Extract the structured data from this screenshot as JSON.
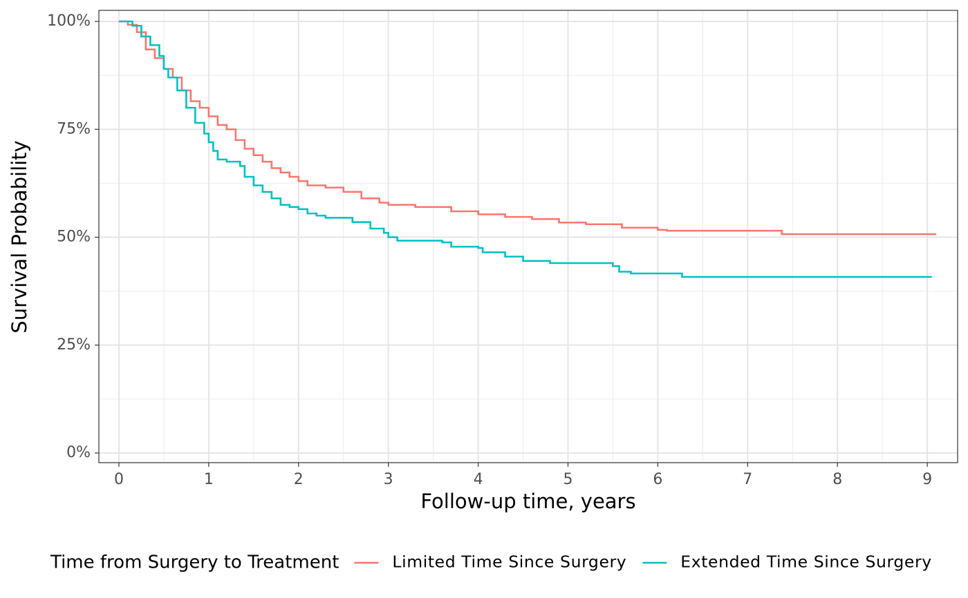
{
  "chart_data": {
    "type": "step",
    "x_label": "Follow-up time, years",
    "y_label": "Survival Probability",
    "xlim": [
      -0.223,
      9.338
    ],
    "ylim": [
      -2.24,
      102.56
    ],
    "xticks": [
      0,
      1,
      2,
      3,
      4,
      5,
      6,
      7,
      8,
      9
    ],
    "yticks": [
      {
        "value": 0,
        "label": "0%"
      },
      {
        "value": 25,
        "label": "25%"
      },
      {
        "value": 50,
        "label": "50%"
      },
      {
        "value": 75,
        "label": "75%"
      },
      {
        "value": 100,
        "label": "100%"
      }
    ],
    "grid": true,
    "legend_title": "Time from Surgery to Treatment",
    "legend_position": "bottom",
    "series": [
      {
        "name": "Limited Time Since Surgery",
        "color": "#f8766d",
        "x": [
          0,
          0.1,
          0.2,
          0.3,
          0.4,
          0.5,
          0.6,
          0.7,
          0.8,
          0.9,
          1.0,
          1.1,
          1.2,
          1.3,
          1.4,
          1.5,
          1.6,
          1.7,
          1.8,
          1.9,
          2.0,
          2.1,
          2.3,
          2.5,
          2.7,
          2.9,
          3.0,
          3.3,
          3.7,
          4.0,
          4.3,
          4.6,
          4.9,
          5.2,
          5.6,
          6.0,
          6.1,
          7.38,
          9.1
        ],
        "values": [
          100,
          99.2,
          97.5,
          93.5,
          91.5,
          89,
          87,
          84,
          81.5,
          80,
          78,
          76,
          75,
          72.5,
          70.5,
          69,
          67.5,
          66,
          65,
          64,
          63,
          62,
          61.5,
          60.5,
          59,
          58,
          57.5,
          57,
          56,
          55.3,
          54.7,
          54.2,
          53.4,
          53,
          52.2,
          51.7,
          51.5,
          50.7,
          50.7
        ]
      },
      {
        "name": "Extended Time Since Surgery",
        "color": "#00bfc4",
        "x": [
          0,
          0.15,
          0.25,
          0.35,
          0.45,
          0.5,
          0.55,
          0.65,
          0.75,
          0.85,
          0.95,
          1.0,
          1.05,
          1.1,
          1.2,
          1.35,
          1.4,
          1.5,
          1.6,
          1.7,
          1.8,
          1.9,
          2.0,
          2.1,
          2.2,
          2.3,
          2.6,
          2.8,
          2.95,
          3.0,
          3.1,
          3.6,
          3.7,
          4.0,
          4.05,
          4.3,
          4.5,
          4.8,
          5.5,
          5.57,
          5.7,
          6.27,
          9.05
        ],
        "values": [
          100,
          99,
          96.5,
          94.5,
          92,
          89,
          87,
          84,
          80,
          76.5,
          74,
          72,
          70,
          68,
          67.5,
          66.5,
          64,
          62,
          60.5,
          59,
          57.5,
          57,
          56.5,
          55.5,
          55,
          54.5,
          53.5,
          52,
          51,
          50,
          49.2,
          48.8,
          47.8,
          47.5,
          46.5,
          45.5,
          44.5,
          44,
          43.3,
          42,
          41.6,
          40.8,
          40.8
        ]
      }
    ]
  }
}
